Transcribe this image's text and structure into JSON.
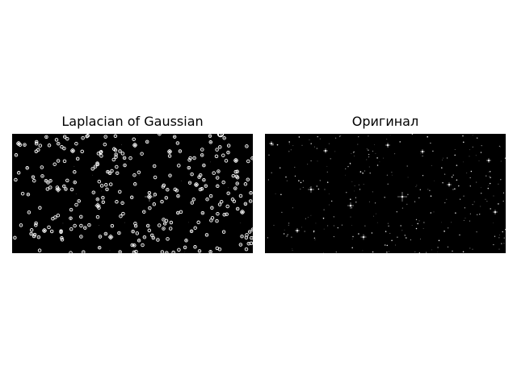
{
  "panels": [
    {
      "title": "Laplacian of Gaussian",
      "content": "star field image with detected blobs circled in white"
    },
    {
      "title": "Оригинал",
      "content": "original star field image"
    }
  ],
  "colors": {
    "background": "#ffffff",
    "image_bg": "#000000",
    "circle": "#ffffff",
    "star": "#ffffff"
  }
}
